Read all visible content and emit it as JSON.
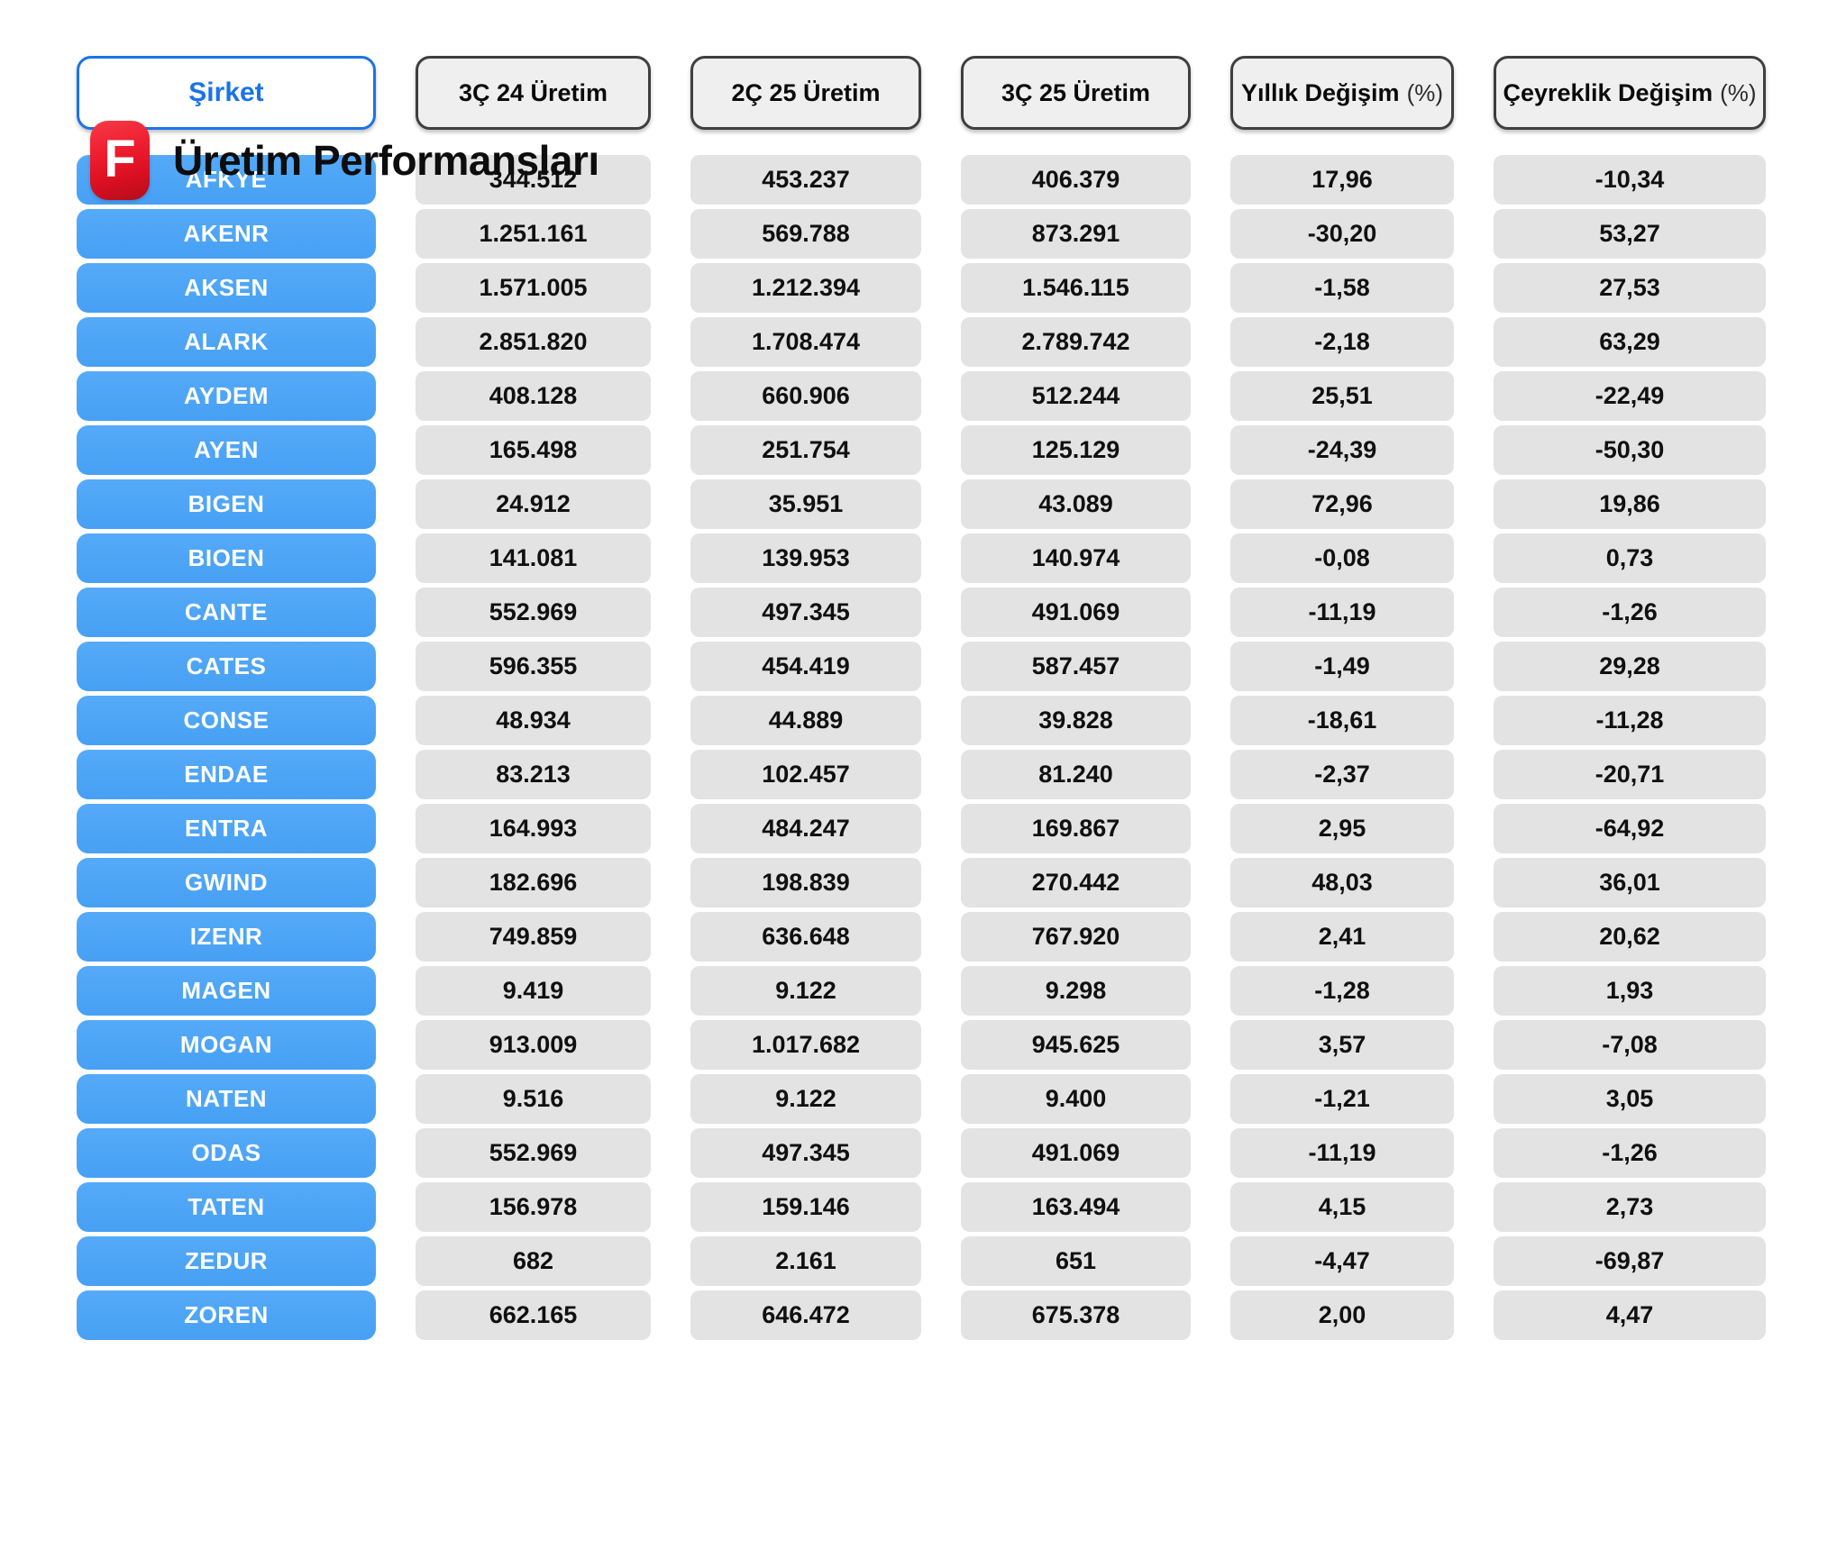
{
  "page": {
    "title": "Üretim Performansları",
    "logo_letter": "F"
  },
  "colors": {
    "logo_red": "#e01022",
    "accent_blue": "#1a73e8",
    "company_pill_blue": "#4aa3f6",
    "header_fill": "#efefef",
    "header_border": "#3f3f3f",
    "cell_gray": "#e3e3e3",
    "background": "#ffffff"
  },
  "chart_data": {
    "type": "table",
    "title": "Üretim Performansları",
    "columns": [
      {
        "key": "sirket",
        "label": "Şirket"
      },
      {
        "key": "q3_24_uretim",
        "label": "3Ç 24 Üretim"
      },
      {
        "key": "q2_25_uretim",
        "label": "2Ç 25 Üretim"
      },
      {
        "key": "q3_25_uretim",
        "label": "3Ç 25 Üretim"
      },
      {
        "key": "yillik_degisim_pct",
        "label": "Yıllık Değişim",
        "suffix": "(%)"
      },
      {
        "key": "ceyreklik_degisim_pct",
        "label": "Çeyreklik Değişim",
        "suffix": "(%)"
      }
    ],
    "rows": [
      [
        "AFKYE",
        "344.512",
        "453.237",
        "406.379",
        "17,96",
        "-10,34"
      ],
      [
        "AKENR",
        "1.251.161",
        "569.788",
        "873.291",
        "-30,20",
        "53,27"
      ],
      [
        "AKSEN",
        "1.571.005",
        "1.212.394",
        "1.546.115",
        "-1,58",
        "27,53"
      ],
      [
        "ALARK",
        "2.851.820",
        "1.708.474",
        "2.789.742",
        "-2,18",
        "63,29"
      ],
      [
        "AYDEM",
        "408.128",
        "660.906",
        "512.244",
        "25,51",
        "-22,49"
      ],
      [
        "AYEN",
        "165.498",
        "251.754",
        "125.129",
        "-24,39",
        "-50,30"
      ],
      [
        "BIGEN",
        "24.912",
        "35.951",
        "43.089",
        "72,96",
        "19,86"
      ],
      [
        "BIOEN",
        "141.081",
        "139.953",
        "140.974",
        "-0,08",
        "0,73"
      ],
      [
        "CANTE",
        "552.969",
        "497.345",
        "491.069",
        "-11,19",
        "-1,26"
      ],
      [
        "CATES",
        "596.355",
        "454.419",
        "587.457",
        "-1,49",
        "29,28"
      ],
      [
        "CONSE",
        "48.934",
        "44.889",
        "39.828",
        "-18,61",
        "-11,28"
      ],
      [
        "ENDAE",
        "83.213",
        "102.457",
        "81.240",
        "-2,37",
        "-20,71"
      ],
      [
        "ENTRA",
        "164.993",
        "484.247",
        "169.867",
        "2,95",
        "-64,92"
      ],
      [
        "GWIND",
        "182.696",
        "198.839",
        "270.442",
        "48,03",
        "36,01"
      ],
      [
        "IZENR",
        "749.859",
        "636.648",
        "767.920",
        "2,41",
        "20,62"
      ],
      [
        "MAGEN",
        "9.419",
        "9.122",
        "9.298",
        "-1,28",
        "1,93"
      ],
      [
        "MOGAN",
        "913.009",
        "1.017.682",
        "945.625",
        "3,57",
        "-7,08"
      ],
      [
        "NATEN",
        "9.516",
        "9.122",
        "9.400",
        "-1,21",
        "3,05"
      ],
      [
        "ODAS",
        "552.969",
        "497.345",
        "491.069",
        "-11,19",
        "-1,26"
      ],
      [
        "TATEN",
        "156.978",
        "159.146",
        "163.494",
        "4,15",
        "2,73"
      ],
      [
        "ZEDUR",
        "682",
        "2.161",
        "651",
        "-4,47",
        "-69,87"
      ],
      [
        "ZOREN",
        "662.165",
        "646.472",
        "675.378",
        "2,00",
        "4,47"
      ]
    ]
  }
}
